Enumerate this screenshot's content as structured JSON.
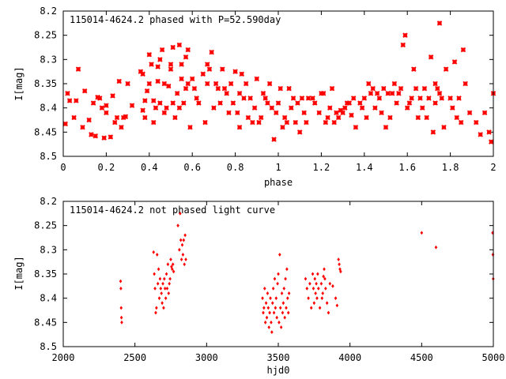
{
  "colors": {
    "points": "#ff0000",
    "frame": "#000000",
    "background": "#ffffff"
  },
  "chart_data": [
    {
      "type": "scatter",
      "title": "115014-4624.2 phased with P=52.590day",
      "xlabel": "phase",
      "ylabel": "I[mag]",
      "xlim": [
        0,
        2
      ],
      "ylim": [
        8.2,
        8.5
      ],
      "y_inverted": true,
      "marker": "cross",
      "x_ticks": [
        "0",
        "0.2",
        "0.4",
        "0.6",
        "0.8",
        "1",
        "1.2",
        "1.4",
        "1.6",
        "1.8",
        "2"
      ],
      "y_ticks": [
        "8.2",
        "8.25",
        "8.3",
        "8.35",
        "8.4",
        "8.45",
        "8.5"
      ],
      "points": [
        [
          0.01,
          8.433
        ],
        [
          0.02,
          8.37
        ],
        [
          0.03,
          8.385
        ],
        [
          0.05,
          8.42
        ],
        [
          0.06,
          8.385
        ],
        [
          0.07,
          8.32
        ],
        [
          0.09,
          8.44
        ],
        [
          0.1,
          8.365
        ],
        [
          0.12,
          8.425
        ],
        [
          0.13,
          8.455
        ],
        [
          0.14,
          8.39
        ],
        [
          0.15,
          8.458
        ],
        [
          0.16,
          8.378
        ],
        [
          0.17,
          8.38
        ],
        [
          0.18,
          8.4
        ],
        [
          0.19,
          8.462
        ],
        [
          0.2,
          8.395
        ],
        [
          0.2,
          8.41
        ],
        [
          0.22,
          8.46
        ],
        [
          0.23,
          8.375
        ],
        [
          0.24,
          8.43
        ],
        [
          0.25,
          8.42
        ],
        [
          0.26,
          8.345
        ],
        [
          0.27,
          8.44
        ],
        [
          0.28,
          8.42
        ],
        [
          0.29,
          8.418
        ],
        [
          0.3,
          8.35
        ],
        [
          0.32,
          8.395
        ],
        [
          0.36,
          8.325
        ],
        [
          0.37,
          8.33
        ],
        [
          0.37,
          8.405
        ],
        [
          0.38,
          8.385
        ],
        [
          0.38,
          8.42
        ],
        [
          0.39,
          8.365
        ],
        [
          0.4,
          8.35
        ],
        [
          0.4,
          8.29
        ],
        [
          0.41,
          8.31
        ],
        [
          0.42,
          8.385
        ],
        [
          0.42,
          8.43
        ],
        [
          0.43,
          8.4
        ],
        [
          0.44,
          8.315
        ],
        [
          0.44,
          8.345
        ],
        [
          0.45,
          8.3
        ],
        [
          0.45,
          8.39
        ],
        [
          0.46,
          8.28
        ],
        [
          0.47,
          8.41
        ],
        [
          0.47,
          8.35
        ],
        [
          0.48,
          8.4
        ],
        [
          0.49,
          8.355
        ],
        [
          0.5,
          8.32
        ],
        [
          0.5,
          8.31
        ],
        [
          0.51,
          8.39
        ],
        [
          0.51,
          8.275
        ],
        [
          0.52,
          8.42
        ],
        [
          0.53,
          8.37
        ],
        [
          0.54,
          8.4
        ],
        [
          0.54,
          8.27
        ],
        [
          0.55,
          8.34
        ],
        [
          0.55,
          8.31
        ],
        [
          0.56,
          8.39
        ],
        [
          0.57,
          8.36
        ],
        [
          0.57,
          8.295
        ],
        [
          0.58,
          8.28
        ],
        [
          0.58,
          8.35
        ],
        [
          0.59,
          8.44
        ],
        [
          0.6,
          8.34
        ],
        [
          0.61,
          8.36
        ],
        [
          0.62,
          8.38
        ],
        [
          0.63,
          8.39
        ],
        [
          0.65,
          8.33
        ],
        [
          0.66,
          8.43
        ],
        [
          0.67,
          8.35
        ],
        [
          0.67,
          8.31
        ],
        [
          0.68,
          8.32
        ],
        [
          0.69,
          8.285
        ],
        [
          0.7,
          8.4
        ],
        [
          0.71,
          8.35
        ],
        [
          0.72,
          8.36
        ],
        [
          0.73,
          8.39
        ],
        [
          0.74,
          8.32
        ],
        [
          0.75,
          8.36
        ],
        [
          0.76,
          8.37
        ],
        [
          0.77,
          8.41
        ],
        [
          0.78,
          8.35
        ],
        [
          0.79,
          8.39
        ],
        [
          0.8,
          8.325
        ],
        [
          0.81,
          8.41
        ],
        [
          0.82,
          8.37
        ],
        [
          0.82,
          8.44
        ],
        [
          0.83,
          8.33
        ],
        [
          0.84,
          8.38
        ],
        [
          0.85,
          8.35
        ],
        [
          0.86,
          8.42
        ],
        [
          0.87,
          8.38
        ],
        [
          0.88,
          8.43
        ],
        [
          0.89,
          8.4
        ],
        [
          0.9,
          8.34
        ],
        [
          0.91,
          8.43
        ],
        [
          0.92,
          8.42
        ],
        [
          0.93,
          8.37
        ],
        [
          0.94,
          8.38
        ],
        [
          0.95,
          8.39
        ],
        [
          0.96,
          8.35
        ],
        [
          0.97,
          8.4
        ],
        [
          0.98,
          8.465
        ],
        [
          0.99,
          8.41
        ],
        [
          1.0,
          8.39
        ],
        [
          1.01,
          8.36
        ],
        [
          1.02,
          8.44
        ],
        [
          1.03,
          8.42
        ],
        [
          1.04,
          8.43
        ],
        [
          1.05,
          8.36
        ],
        [
          1.06,
          8.4
        ],
        [
          1.07,
          8.38
        ],
        [
          1.08,
          8.43
        ],
        [
          1.09,
          8.39
        ],
        [
          1.1,
          8.45
        ],
        [
          1.11,
          8.38
        ],
        [
          1.12,
          8.41
        ],
        [
          1.13,
          8.43
        ],
        [
          1.14,
          8.38
        ],
        [
          1.16,
          8.38
        ],
        [
          1.17,
          8.39
        ],
        [
          1.19,
          8.41
        ],
        [
          1.2,
          8.37
        ],
        [
          1.21,
          8.37
        ],
        [
          1.22,
          8.43
        ],
        [
          1.23,
          8.42
        ],
        [
          1.24,
          8.4
        ],
        [
          1.25,
          8.36
        ],
        [
          1.26,
          8.43
        ],
        [
          1.27,
          8.41
        ],
        [
          1.28,
          8.42
        ],
        [
          1.29,
          8.405
        ],
        [
          1.3,
          8.41
        ],
        [
          1.31,
          8.4
        ],
        [
          1.32,
          8.39
        ],
        [
          1.33,
          8.39
        ],
        [
          1.34,
          8.415
        ],
        [
          1.35,
          8.38
        ],
        [
          1.36,
          8.44
        ],
        [
          1.38,
          8.39
        ],
        [
          1.39,
          8.4
        ],
        [
          1.4,
          8.38
        ],
        [
          1.41,
          8.42
        ],
        [
          1.42,
          8.35
        ],
        [
          1.43,
          8.37
        ],
        [
          1.44,
          8.36
        ],
        [
          1.45,
          8.4
        ],
        [
          1.46,
          8.37
        ],
        [
          1.47,
          8.38
        ],
        [
          1.48,
          8.41
        ],
        [
          1.49,
          8.36
        ],
        [
          1.5,
          8.44
        ],
        [
          1.51,
          8.37
        ],
        [
          1.52,
          8.42
        ],
        [
          1.53,
          8.37
        ],
        [
          1.54,
          8.35
        ],
        [
          1.55,
          8.39
        ],
        [
          1.56,
          8.37
        ],
        [
          1.57,
          8.36
        ],
        [
          1.58,
          8.27
        ],
        [
          1.59,
          8.25
        ],
        [
          1.6,
          8.4
        ],
        [
          1.61,
          8.39
        ],
        [
          1.62,
          8.38
        ],
        [
          1.63,
          8.32
        ],
        [
          1.64,
          8.36
        ],
        [
          1.65,
          8.42
        ],
        [
          1.66,
          8.38
        ],
        [
          1.67,
          8.4
        ],
        [
          1.68,
          8.36
        ],
        [
          1.69,
          8.42
        ],
        [
          1.7,
          8.38
        ],
        [
          1.71,
          8.295
        ],
        [
          1.72,
          8.45
        ],
        [
          1.73,
          8.35
        ],
        [
          1.73,
          8.39
        ],
        [
          1.74,
          8.36
        ],
        [
          1.75,
          8.37
        ],
        [
          1.75,
          8.225
        ],
        [
          1.76,
          8.38
        ],
        [
          1.77,
          8.44
        ],
        [
          1.78,
          8.32
        ],
        [
          1.8,
          8.38
        ],
        [
          1.81,
          8.4
        ],
        [
          1.82,
          8.305
        ],
        [
          1.83,
          8.42
        ],
        [
          1.84,
          8.38
        ],
        [
          1.85,
          8.43
        ],
        [
          1.86,
          8.28
        ],
        [
          1.87,
          8.35
        ],
        [
          1.89,
          8.41
        ],
        [
          1.92,
          8.43
        ],
        [
          1.94,
          8.455
        ],
        [
          1.96,
          8.41
        ],
        [
          1.98,
          8.45
        ],
        [
          1.99,
          8.47
        ],
        [
          2.0,
          8.37
        ]
      ]
    },
    {
      "type": "scatter",
      "title": "115014-4624.2 not phased light curve",
      "xlabel": "hjd0",
      "ylabel": "I[mag]",
      "xlim": [
        2000,
        5000
      ],
      "ylim": [
        8.2,
        8.5
      ],
      "y_inverted": true,
      "marker": "diamond",
      "x_ticks": [
        "2000",
        "2500",
        "3000",
        "3500",
        "4000",
        "4500",
        "5000"
      ],
      "y_ticks": [
        "8.2",
        "8.25",
        "8.3",
        "8.35",
        "8.4",
        "8.45",
        "8.5"
      ],
      "points": [
        [
          2400,
          8.365
        ],
        [
          2402,
          8.38
        ],
        [
          2404,
          8.42
        ],
        [
          2406,
          8.44
        ],
        [
          2408,
          8.45
        ],
        [
          2630,
          8.305
        ],
        [
          2635,
          8.35
        ],
        [
          2640,
          8.38
        ],
        [
          2645,
          8.43
        ],
        [
          2650,
          8.42
        ],
        [
          2655,
          8.31
        ],
        [
          2660,
          8.37
        ],
        [
          2665,
          8.34
        ],
        [
          2670,
          8.4
        ],
        [
          2675,
          8.36
        ],
        [
          2680,
          8.38
        ],
        [
          2685,
          8.39
        ],
        [
          2690,
          8.41
        ],
        [
          2695,
          8.37
        ],
        [
          2700,
          8.42
        ],
        [
          2705,
          8.36
        ],
        [
          2710,
          8.38
        ],
        [
          2715,
          8.4
        ],
        [
          2720,
          8.35
        ],
        [
          2725,
          8.38
        ],
        [
          2730,
          8.33
        ],
        [
          2735,
          8.39
        ],
        [
          2740,
          8.37
        ],
        [
          2745,
          8.36
        ],
        [
          2750,
          8.32
        ],
        [
          2755,
          8.335
        ],
        [
          2760,
          8.34
        ],
        [
          2765,
          8.33
        ],
        [
          2770,
          8.345
        ],
        [
          2800,
          8.25
        ],
        [
          2810,
          8.3
        ],
        [
          2815,
          8.225
        ],
        [
          2820,
          8.28
        ],
        [
          2825,
          8.32
        ],
        [
          2830,
          8.29
        ],
        [
          2835,
          8.31
        ],
        [
          2840,
          8.28
        ],
        [
          2845,
          8.33
        ],
        [
          2850,
          8.27
        ],
        [
          2855,
          8.32
        ],
        [
          3390,
          8.4
        ],
        [
          3395,
          8.43
        ],
        [
          3400,
          8.42
        ],
        [
          3405,
          8.38
        ],
        [
          3410,
          8.45
        ],
        [
          3415,
          8.41
        ],
        [
          3420,
          8.44
        ],
        [
          3425,
          8.39
        ],
        [
          3430,
          8.42
        ],
        [
          3435,
          8.46
        ],
        [
          3440,
          8.43
        ],
        [
          3445,
          8.4
        ],
        [
          3450,
          8.45
        ],
        [
          3455,
          8.47
        ],
        [
          3460,
          8.41
        ],
        [
          3465,
          8.38
        ],
        [
          3470,
          8.43
        ],
        [
          3475,
          8.36
        ],
        [
          3480,
          8.42
        ],
        [
          3485,
          8.4
        ],
        [
          3490,
          8.44
        ],
        [
          3495,
          8.37
        ],
        [
          3500,
          8.35
        ],
        [
          3505,
          8.45
        ],
        [
          3510,
          8.31
        ],
        [
          3515,
          8.42
        ],
        [
          3520,
          8.46
        ],
        [
          3525,
          8.39
        ],
        [
          3530,
          8.43
        ],
        [
          3535,
          8.41
        ],
        [
          3540,
          8.38
        ],
        [
          3545,
          8.44
        ],
        [
          3550,
          8.36
        ],
        [
          3555,
          8.42
        ],
        [
          3560,
          8.34
        ],
        [
          3565,
          8.4
        ],
        [
          3570,
          8.43
        ],
        [
          3575,
          8.39
        ],
        [
          3690,
          8.36
        ],
        [
          3700,
          8.38
        ],
        [
          3710,
          8.4
        ],
        [
          3720,
          8.37
        ],
        [
          3730,
          8.42
        ],
        [
          3740,
          8.35
        ],
        [
          3745,
          8.38
        ],
        [
          3750,
          8.41
        ],
        [
          3755,
          8.36
        ],
        [
          3760,
          8.39
        ],
        [
          3765,
          8.37
        ],
        [
          3770,
          8.4
        ],
        [
          3775,
          8.35
        ],
        [
          3780,
          8.38
        ],
        [
          3790,
          8.42
        ],
        [
          3800,
          8.37
        ],
        [
          3805,
          8.4
        ],
        [
          3810,
          8.39
        ],
        [
          3815,
          8.355
        ],
        [
          3820,
          8.34
        ],
        [
          3825,
          8.36
        ],
        [
          3830,
          8.38
        ],
        [
          3840,
          8.41
        ],
        [
          3850,
          8.43
        ],
        [
          3860,
          8.37
        ],
        [
          3880,
          8.375
        ],
        [
          3900,
          8.4
        ],
        [
          3910,
          8.415
        ],
        [
          3920,
          8.32
        ],
        [
          3925,
          8.33
        ],
        [
          3930,
          8.34
        ],
        [
          3935,
          8.345
        ],
        [
          4500,
          8.265
        ],
        [
          4600,
          8.295
        ],
        [
          4995,
          8.265
        ],
        [
          4997,
          8.31
        ],
        [
          4999,
          8.36
        ]
      ]
    }
  ]
}
